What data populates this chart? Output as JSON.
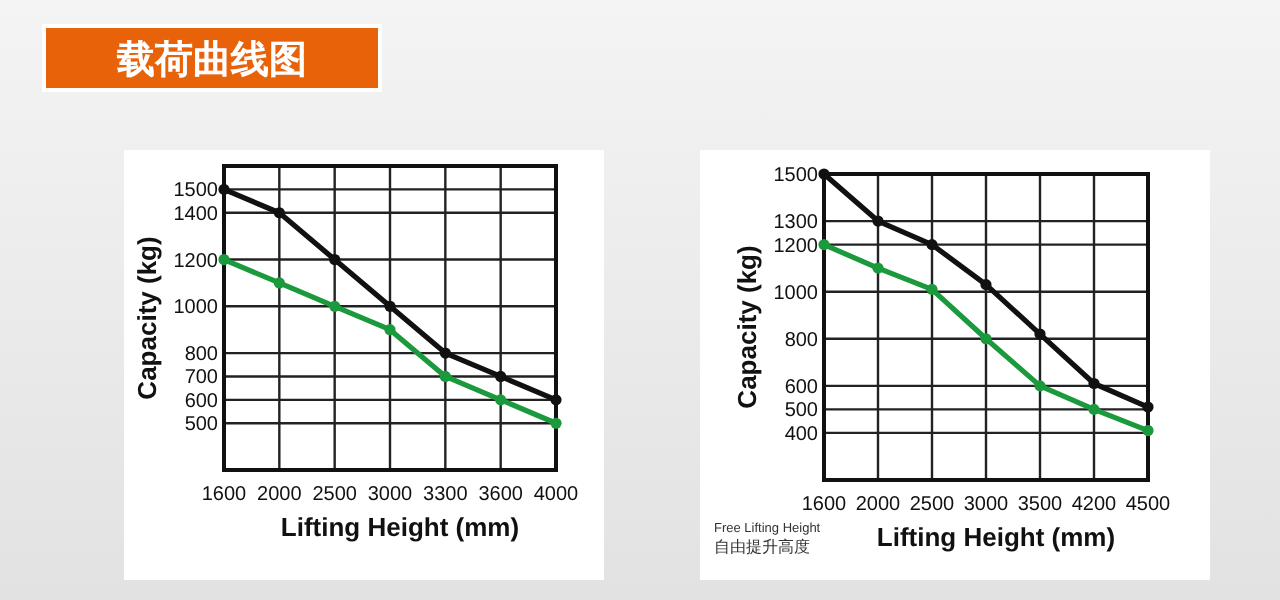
{
  "chart_data": [
    {
      "type": "line",
      "title": "载荷曲线图",
      "xlabel": "Lifting Height (mm)",
      "ylabel": "Capacity (kg)",
      "categories": [
        "1600",
        "2000",
        "2500",
        "3000",
        "3300",
        "3600",
        "4000"
      ],
      "series": [
        {
          "color": "#111111",
          "values": [
            1500,
            1400,
            1200,
            1000,
            800,
            700,
            600
          ]
        },
        {
          "color": "#1a9a3c",
          "values": [
            1200,
            1100,
            1000,
            900,
            700,
            600,
            500
          ]
        }
      ],
      "ylim": [
        300,
        1600
      ],
      "yticks": [
        500,
        600,
        700,
        800,
        1000,
        1200,
        1400,
        1500
      ],
      "grid": true,
      "marker": "circle"
    },
    {
      "type": "line",
      "xlabel": "Lifting Height (mm)",
      "ylabel": "Capacity (kg)",
      "annotations": [
        "Free Lifting Height",
        "自由提升高度"
      ],
      "categories": [
        "1600",
        "2000",
        "2500",
        "3000",
        "3500",
        "4200",
        "4500"
      ],
      "series": [
        {
          "color": "#111111",
          "values": [
            1500,
            1300,
            1200,
            1030,
            820,
            610,
            510
          ]
        },
        {
          "color": "#1a9a3c",
          "values": [
            1200,
            1100,
            1010,
            800,
            600,
            500,
            410
          ]
        }
      ],
      "ylim": [
        200,
        1500
      ],
      "yticks": [
        400,
        500,
        600,
        800,
        1000,
        1200,
        1300,
        1500
      ],
      "grid": true,
      "marker": "circle"
    }
  ]
}
